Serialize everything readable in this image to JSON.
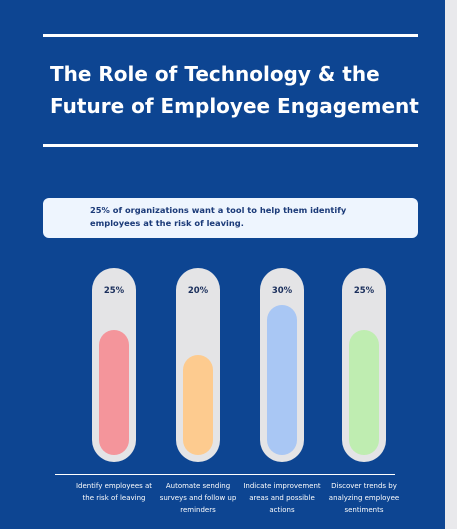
{
  "chart_data": {
    "type": "bar",
    "title": "The Role of Technology & the Future of Employee Engagement",
    "subtitle": "25% of organizations want a tool to help them identify employees at the risk of leaving.",
    "categories": [
      "Identify employees at the risk of leaving",
      "Automate sending surveys and follow up reminders",
      "Indicate improvement areas and possible actions",
      "Discover trends by analyzing employee sentiments"
    ],
    "values": [
      25,
      20,
      30,
      25
    ],
    "value_labels": [
      "25%",
      "20%",
      "30%",
      "25%"
    ],
    "colors": [
      "#f4959b",
      "#fdcb8f",
      "#a9c7f4",
      "#bfedb1"
    ]
  }
}
